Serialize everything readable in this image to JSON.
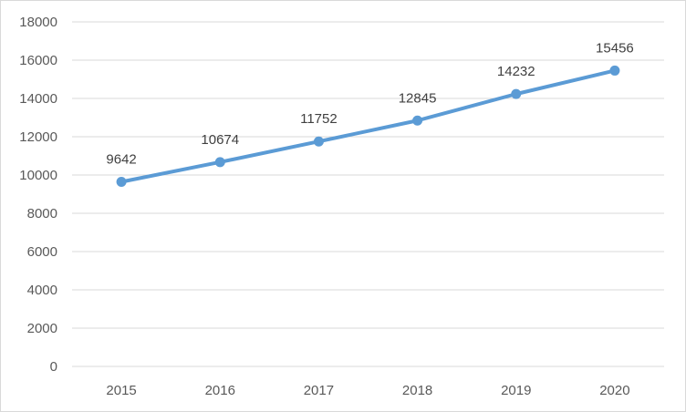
{
  "chart_data": {
    "type": "line",
    "title": "",
    "xlabel": "",
    "ylabel": "",
    "categories": [
      "2015",
      "2016",
      "2017",
      "2018",
      "2019",
      "2020"
    ],
    "series": [
      {
        "values": [
          9642,
          10674,
          11752,
          12845,
          14232,
          15456
        ],
        "color": "#5b9bd5"
      }
    ],
    "ylim": [
      0,
      18000
    ],
    "yticks": [
      0,
      2000,
      4000,
      6000,
      8000,
      10000,
      12000,
      14000,
      16000,
      18000
    ],
    "grid": true,
    "legend": "none",
    "data_labels": true,
    "gridline_color": "#d9d9d9",
    "axis_label_color": "#595959"
  }
}
